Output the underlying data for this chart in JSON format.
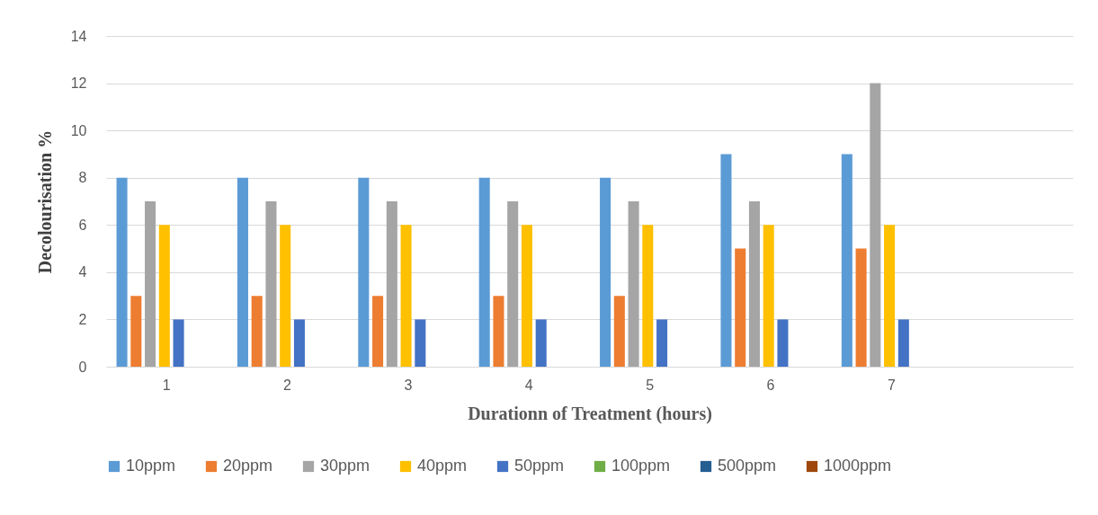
{
  "chart_data": {
    "type": "bar",
    "xlabel": "Durationn  of Treatment (hours)",
    "ylabel": "Decolourisation %",
    "categories": [
      "1",
      "2",
      "3",
      "4",
      "5",
      "6",
      "7",
      null
    ],
    "series": [
      {
        "name": "10ppm",
        "color": "#5b9bd5",
        "values": [
          8,
          8,
          8,
          8,
          8,
          9,
          9,
          null
        ]
      },
      {
        "name": "20ppm",
        "color": "#ed7d31",
        "values": [
          3,
          3,
          3,
          3,
          3,
          5,
          5,
          null
        ]
      },
      {
        "name": "30ppm",
        "color": "#a5a5a5",
        "values": [
          7,
          7,
          7,
          7,
          7,
          7,
          12,
          null
        ]
      },
      {
        "name": "40ppm",
        "color": "#ffc000",
        "values": [
          6,
          6,
          6,
          6,
          6,
          6,
          6,
          null
        ]
      },
      {
        "name": "50ppm",
        "color": "#4472c4",
        "values": [
          2,
          2,
          2,
          2,
          2,
          2,
          2,
          null
        ]
      },
      {
        "name": "100ppm",
        "color": "#70ad47",
        "values": [
          0,
          0,
          0,
          0,
          0,
          0,
          0,
          null
        ]
      },
      {
        "name": "500ppm",
        "color": "#255e91",
        "values": [
          0,
          0,
          0,
          0,
          0,
          0,
          0,
          null
        ]
      },
      {
        "name": "1000ppm",
        "color": "#9e480e",
        "values": [
          0,
          0,
          0,
          0,
          0,
          0,
          0,
          null
        ]
      }
    ],
    "ylim": [
      0,
      14
    ],
    "yticks": [
      0,
      2,
      4,
      6,
      8,
      10,
      12,
      14
    ],
    "grid": "y",
    "legend": "bottom"
  }
}
